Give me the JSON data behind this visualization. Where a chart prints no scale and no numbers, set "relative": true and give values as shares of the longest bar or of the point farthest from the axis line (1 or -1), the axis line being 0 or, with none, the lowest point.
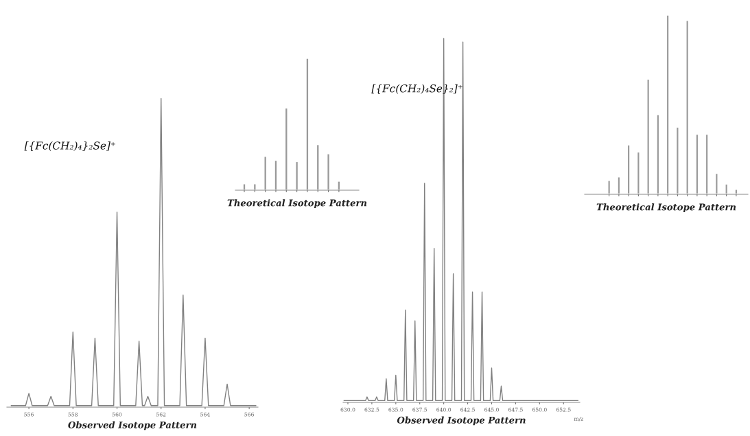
{
  "chart_data": [
    {
      "type": "line",
      "relative": true,
      "xlabel": "Observed Isotope Pattern",
      "annotations": [
        "[{Fc(CH₂)₄}₂Se]⁺"
      ],
      "color": "#808080",
      "xlim": [
        555.0,
        566.4
      ],
      "xticks": [
        556,
        558,
        560,
        562,
        564,
        566
      ],
      "x": [
        555.2,
        555.85,
        556,
        556.15,
        556.85,
        557,
        557.15,
        557.85,
        558,
        558.15,
        558.85,
        559,
        559.15,
        559.85,
        560,
        560.15,
        560.85,
        561,
        561.15,
        561.25,
        561.4,
        561.55,
        561.85,
        562,
        562.15,
        562.85,
        563,
        563.15,
        563.85,
        564,
        564.15,
        564.85,
        565,
        565.15,
        566.3
      ],
      "values": [
        0,
        0,
        0.04,
        0,
        0,
        0.03,
        0,
        0,
        0.24,
        0,
        0,
        0.22,
        0,
        0,
        0.63,
        0,
        0,
        0.21,
        0,
        0,
        0.03,
        0,
        0,
        1,
        0,
        0,
        0.36,
        0,
        0,
        0.22,
        0,
        0,
        0.07,
        0,
        0
      ]
    },
    {
      "type": "bar",
      "relative": true,
      "xlabel": "Theoretical Isotope Pattern",
      "color": "#999999",
      "categories": [
        null,
        null,
        null,
        null,
        null,
        null,
        null,
        null,
        null,
        null
      ],
      "values": [
        0.04,
        0.04,
        0.25,
        0.22,
        0.62,
        0.21,
        1,
        0.34,
        0.27,
        0.06
      ]
    },
    {
      "type": "line",
      "relative": true,
      "xlabel": "Observed Isotope Pattern",
      "annotations": [
        "[{Fc(CH₂)₄Se}₂]⁺",
        "m/z"
      ],
      "color": "#808080",
      "xlim": [
        629.5,
        654.2
      ],
      "xticks": [
        {
          "value": 630.0,
          "label": "630.0"
        },
        {
          "value": 632.5,
          "label": "632.5"
        },
        {
          "value": 635.0,
          "label": "635.0"
        },
        {
          "value": 637.5,
          "label": "637.5"
        },
        {
          "value": 640.0,
          "label": "640.0"
        },
        {
          "value": 642.5,
          "label": "642.5"
        },
        {
          "value": 645.0,
          "label": "645.0"
        },
        {
          "value": 647.5,
          "label": "647.5"
        },
        {
          "value": 650.0,
          "label": "650.0"
        },
        {
          "value": 652.5,
          "label": "652.5"
        }
      ],
      "x": [
        629.6,
        631.85,
        632,
        632.15,
        632.85,
        633,
        633.15,
        633.85,
        634,
        634.15,
        634.85,
        635,
        635.15,
        635.85,
        636,
        636.15,
        636.85,
        637,
        637.15,
        637.85,
        638,
        638.15,
        638.85,
        639,
        639.15,
        639.85,
        640,
        640.15,
        640.85,
        641,
        641.15,
        641.85,
        642,
        642.15,
        642.85,
        643,
        643.15,
        643.85,
        644,
        644.15,
        644.85,
        645,
        645.15,
        645.85,
        646,
        646.15,
        654.0
      ],
      "values": [
        0,
        0,
        0.01,
        0,
        0,
        0.01,
        0,
        0,
        0.06,
        0,
        0,
        0.07,
        0,
        0,
        0.25,
        0,
        0,
        0.22,
        0,
        0,
        0.6,
        0,
        0,
        0.42,
        0,
        0,
        1,
        0,
        0,
        0.35,
        0,
        0,
        0.99,
        0,
        0,
        0.3,
        0,
        0,
        0.3,
        0,
        0,
        0.09,
        0,
        0,
        0.04,
        0,
        0
      ]
    },
    {
      "type": "bar",
      "relative": true,
      "xlabel": "Theoretical Isotope Pattern",
      "color": "#999999",
      "categories": [
        null,
        null,
        null,
        null,
        null,
        null,
        null,
        null,
        null,
        null,
        null,
        null,
        null,
        null
      ],
      "values": [
        0.07,
        0.09,
        0.27,
        0.23,
        0.64,
        0.44,
        1,
        0.37,
        0.97,
        0.33,
        0.33,
        0.11,
        0.05,
        0.02
      ]
    }
  ]
}
